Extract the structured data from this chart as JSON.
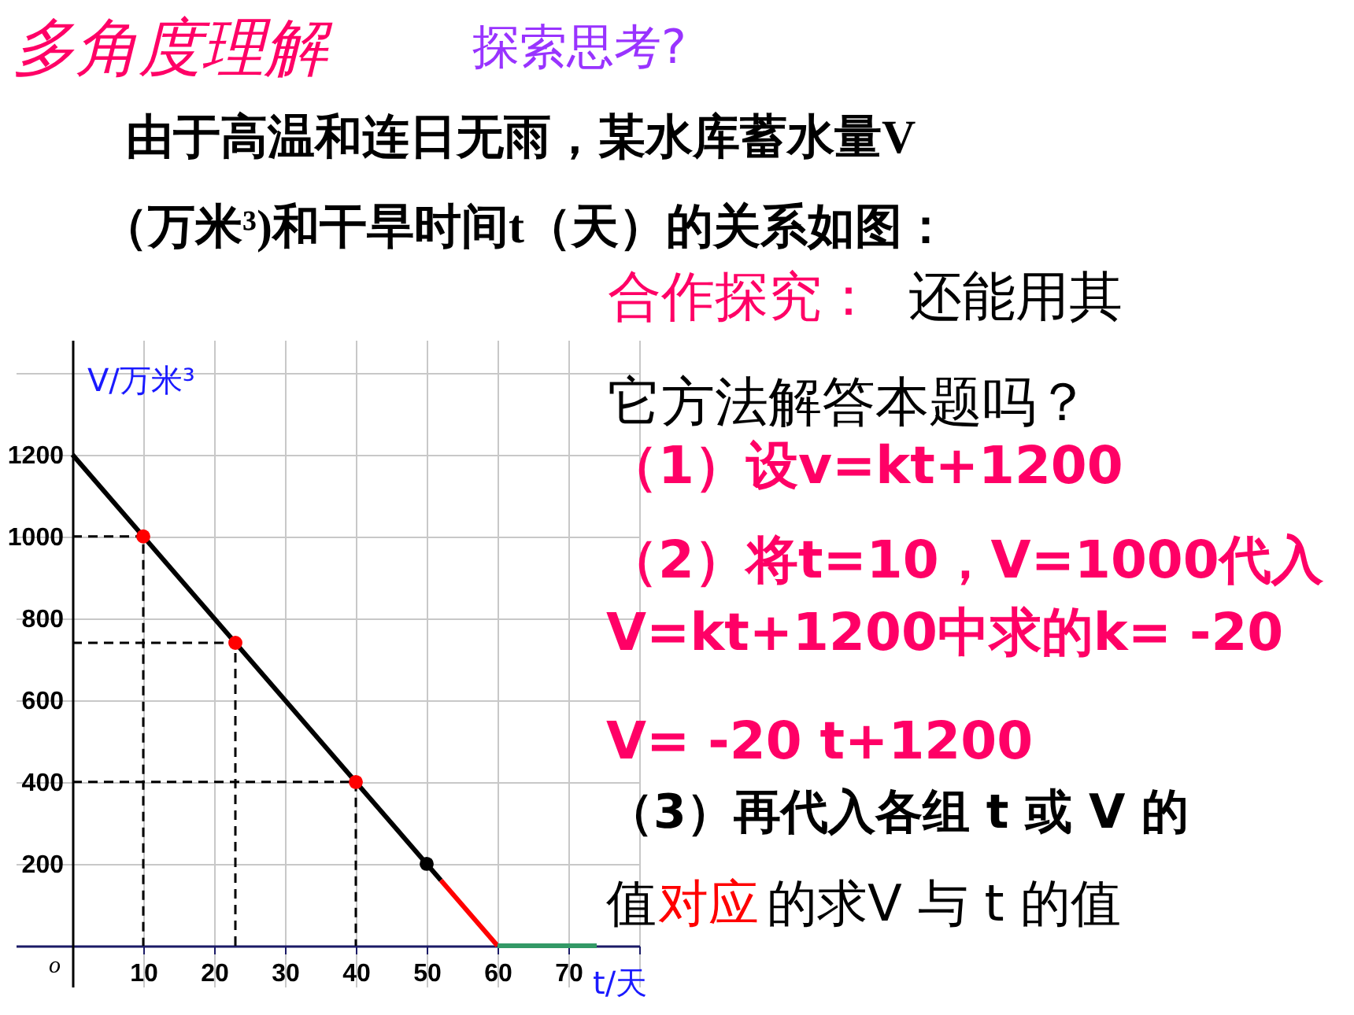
{
  "chart_data": {
    "type": "line",
    "title": "多角度理解",
    "subtitle": "探索思考?",
    "xlabel": "t/天",
    "ylabel": "V/万米³",
    "xlim": [
      -8,
      80
    ],
    "ylim": [
      -100,
      1480
    ],
    "xticks": [
      10,
      20,
      30,
      40,
      50,
      60,
      70,
      {
        "value": 80,
        "label": null
      }
    ],
    "yticks": [
      200,
      400,
      600,
      800,
      1000,
      1200,
      {
        "value": 1400,
        "label": null
      }
    ],
    "grid": true,
    "series": [
      {
        "line_style": "dashed",
        "color": "#000000",
        "x": [
          0,
          10,
          10
        ],
        "values": [
          1000,
          1000,
          0
        ]
      },
      {
        "line_style": "dashed",
        "color": "#000000",
        "x": [
          0,
          23,
          23
        ],
        "values": [
          740,
          740,
          0
        ]
      },
      {
        "line_style": "dashed",
        "color": "#000000",
        "x": [
          0,
          40,
          40
        ],
        "values": [
          400,
          400,
          0
        ]
      },
      {
        "color": "#000000",
        "x": [
          0,
          52
        ],
        "values": [
          1200,
          160
        ]
      },
      {
        "color": "#ff0000",
        "x": [
          52,
          60
        ],
        "values": [
          160,
          0
        ]
      },
      {
        "color": "#339966",
        "x": [
          60,
          74
        ],
        "values": [
          0,
          0
        ]
      },
      {
        "type": "scatter",
        "marker": "circle",
        "color": "#ff0000",
        "x": [
          10,
          23,
          40
        ],
        "values": [
          1000,
          740,
          400
        ]
      },
      {
        "type": "scatter",
        "marker": "circle",
        "color": "#000000",
        "x": [
          50
        ],
        "values": [
          200
        ]
      }
    ],
    "annotations": [
      "由于高温和连日无雨，某水库蓄水量V",
      "（万米³)和干旱时间t（天）的关系如图：",
      "合作探究：",
      "还能用其",
      "它方法解答本题吗？",
      "（1）设v=kt+1200",
      "（2）将t=10，V=1000代入",
      "V=kt+1200中求的k= -20",
      "V= -20 t+1200",
      "（3）再代入各组 t 或 V 的",
      "值",
      "对应",
      "的求V 与 t  的值",
      "o"
    ]
  }
}
